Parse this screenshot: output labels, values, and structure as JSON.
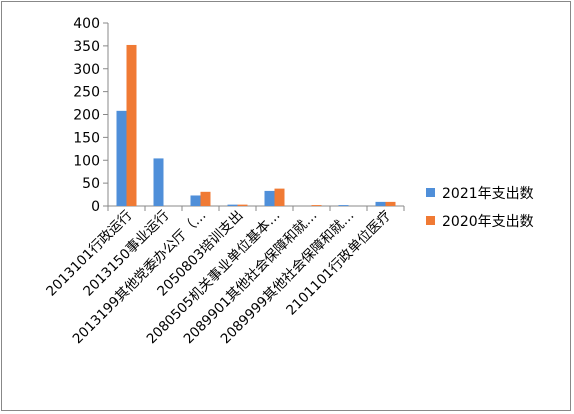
{
  "chart_data": {
    "type": "bar",
    "title": "",
    "xlabel": "",
    "ylabel": "",
    "ylim": [
      0,
      400
    ],
    "yticks": [
      0,
      50,
      100,
      150,
      200,
      250,
      300,
      350,
      400
    ],
    "grid": false,
    "legend_position": "right",
    "categories": [
      "2013101行政运行",
      "2013150事业运行",
      "2013199其他党委办公厅（…",
      "2050803培训支出",
      "2080505机关事业单位基本…",
      "2089901其他社会保障和就…",
      "2089999其他社会保障和就…",
      "2101101行政单位医疗"
    ],
    "series": [
      {
        "name": "2021年支出数",
        "color": "#4F8FD9",
        "values": [
          208,
          104,
          23,
          3,
          33,
          0,
          2,
          9
        ]
      },
      {
        "name": "2020年支出数",
        "color": "#F07A34",
        "values": [
          352,
          0,
          31,
          3,
          38,
          2,
          0,
          9
        ]
      }
    ]
  }
}
